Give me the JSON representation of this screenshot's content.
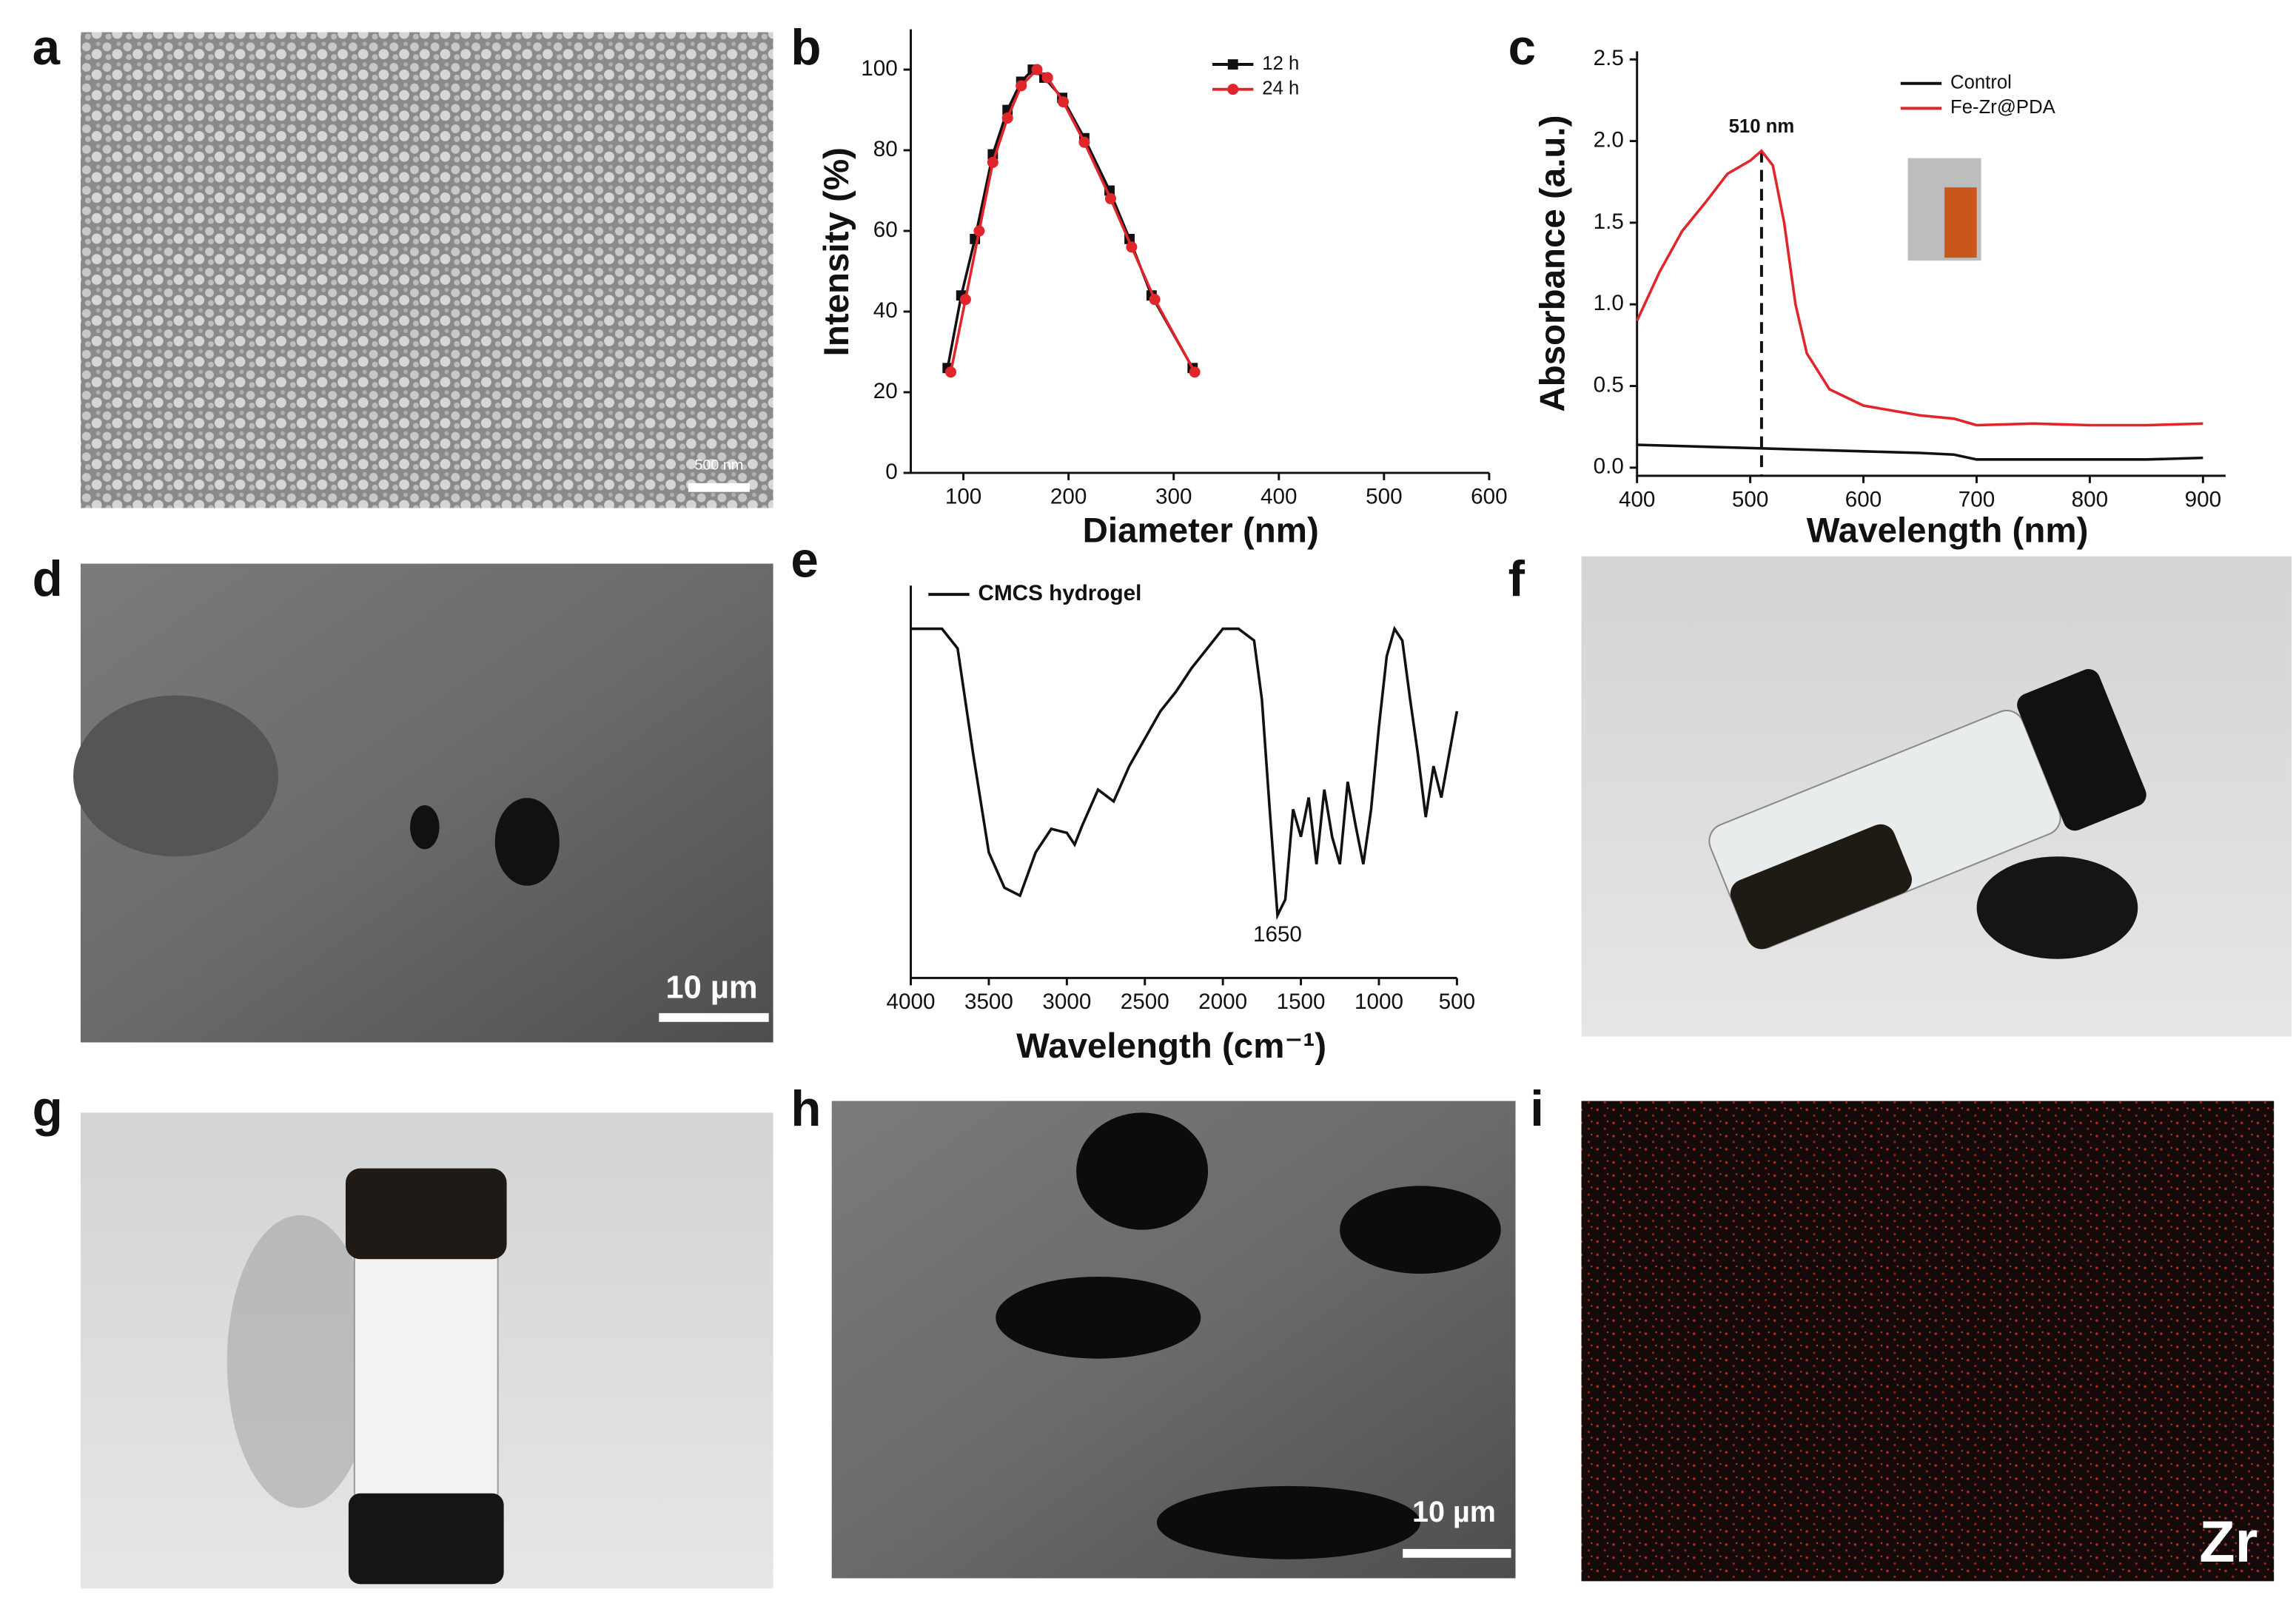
{
  "panel_labels": [
    "a",
    "b",
    "c",
    "d",
    "e",
    "f",
    "g",
    "h",
    "i"
  ],
  "images": {
    "a": {
      "scale_bar": "500 nm"
    },
    "d": {
      "scale_bar": "10 µm"
    },
    "h": {
      "scale_bar": "10 µm"
    },
    "i": {
      "element": "Zr"
    }
  },
  "chart_data": [
    {
      "type": "line",
      "ylabel": "Intensity (%)",
      "xlabel": "Diameter (nm)",
      "xlim": [
        50,
        600
      ],
      "xticks": [
        100,
        200,
        300,
        400,
        500,
        600
      ],
      "ylim": [
        0,
        110
      ],
      "yticks": [
        0,
        20,
        40,
        60,
        80,
        100
      ],
      "legend": "upper right",
      "series": [
        {
          "name": "12 h",
          "color": "#111111",
          "marker": "square",
          "x": [
            85,
            98,
            111,
            128,
            142,
            155,
            166,
            177,
            194,
            215,
            239,
            258,
            279,
            318
          ],
          "values": [
            26,
            44,
            58,
            79,
            90,
            97,
            100,
            98,
            93,
            83,
            70,
            58,
            44,
            26
          ]
        },
        {
          "name": "24 h",
          "color": "#e0262b",
          "marker": "circle",
          "x": [
            88,
            102,
            115,
            128,
            142,
            155,
            170,
            180,
            195,
            215,
            240,
            260,
            282,
            320
          ],
          "values": [
            25,
            43,
            60,
            77,
            88,
            96,
            100,
            98,
            92,
            82,
            68,
            56,
            43,
            25
          ]
        }
      ]
    },
    {
      "type": "line",
      "ylabel": "Absorbance (a.u.)",
      "xlabel": "Wavelength (nm)",
      "xlim": [
        400,
        920
      ],
      "xticks": [
        400,
        500,
        600,
        700,
        800,
        900
      ],
      "ylim": [
        -0.05,
        2.55
      ],
      "yticks": [
        {
          "value": 0,
          "label": "0.0"
        },
        0.5,
        {
          "value": 1,
          "label": "1.0"
        },
        1.5,
        {
          "value": 2,
          "label": "2.0"
        },
        2.5
      ],
      "legend": "upper right",
      "annotations": [
        {
          "text": "510 nm",
          "x": 510
        }
      ],
      "series": [
        {
          "name": "Control",
          "color": "#111111",
          "x": [
            400,
            450,
            500,
            550,
            600,
            650,
            680,
            700,
            750,
            800,
            850,
            900
          ],
          "values": [
            0.14,
            0.13,
            0.12,
            0.11,
            0.1,
            0.09,
            0.08,
            0.05,
            0.05,
            0.05,
            0.05,
            0.06
          ]
        },
        {
          "name": "Fe-Zr@PDA",
          "color": "#e0262b",
          "x": [
            400,
            420,
            440,
            460,
            480,
            500,
            510,
            520,
            530,
            540,
            550,
            570,
            600,
            650,
            680,
            700,
            750,
            800,
            850,
            900
          ],
          "values": [
            0.9,
            1.2,
            1.45,
            1.62,
            1.8,
            1.88,
            1.94,
            1.85,
            1.5,
            1.0,
            0.7,
            0.48,
            0.38,
            0.32,
            0.3,
            0.26,
            0.27,
            0.26,
            0.26,
            0.27
          ]
        }
      ]
    },
    {
      "type": "line",
      "xlabel": "Wavelength (cm⁻¹)",
      "xlim": [
        4000,
        500
      ],
      "xticks": [
        4000,
        3500,
        3000,
        2500,
        2000,
        1500,
        1000,
        500
      ],
      "ylim": [
        0,
        100
      ],
      "legend": "upper left",
      "annotations": [
        {
          "text": "1650",
          "x": 1650
        }
      ],
      "series": [
        {
          "name": "CMCS hydrogel",
          "color": "#111111",
          "x": [
            4000,
            3800,
            3700,
            3600,
            3500,
            3400,
            3300,
            3200,
            3100,
            3000,
            2950,
            2900,
            2800,
            2700,
            2600,
            2500,
            2400,
            2300,
            2200,
            2100,
            2000,
            1900,
            1800,
            1750,
            1700,
            1650,
            1600,
            1550,
            1500,
            1450,
            1400,
            1350,
            1300,
            1250,
            1200,
            1150,
            1100,
            1050,
            1000,
            950,
            900,
            850,
            800,
            750,
            700,
            650,
            600,
            550,
            500
          ],
          "values": [
            89,
            89,
            84,
            57,
            32,
            23,
            21,
            32,
            38,
            37,
            34,
            39,
            48,
            45,
            54,
            61,
            68,
            73,
            79,
            84,
            89,
            89,
            86,
            71,
            43,
            16,
            20,
            43,
            36,
            46,
            29,
            48,
            36,
            29,
            50,
            39,
            29,
            43,
            64,
            82,
            89,
            86,
            71,
            57,
            41,
            54,
            46,
            57,
            68
          ]
        }
      ]
    }
  ]
}
